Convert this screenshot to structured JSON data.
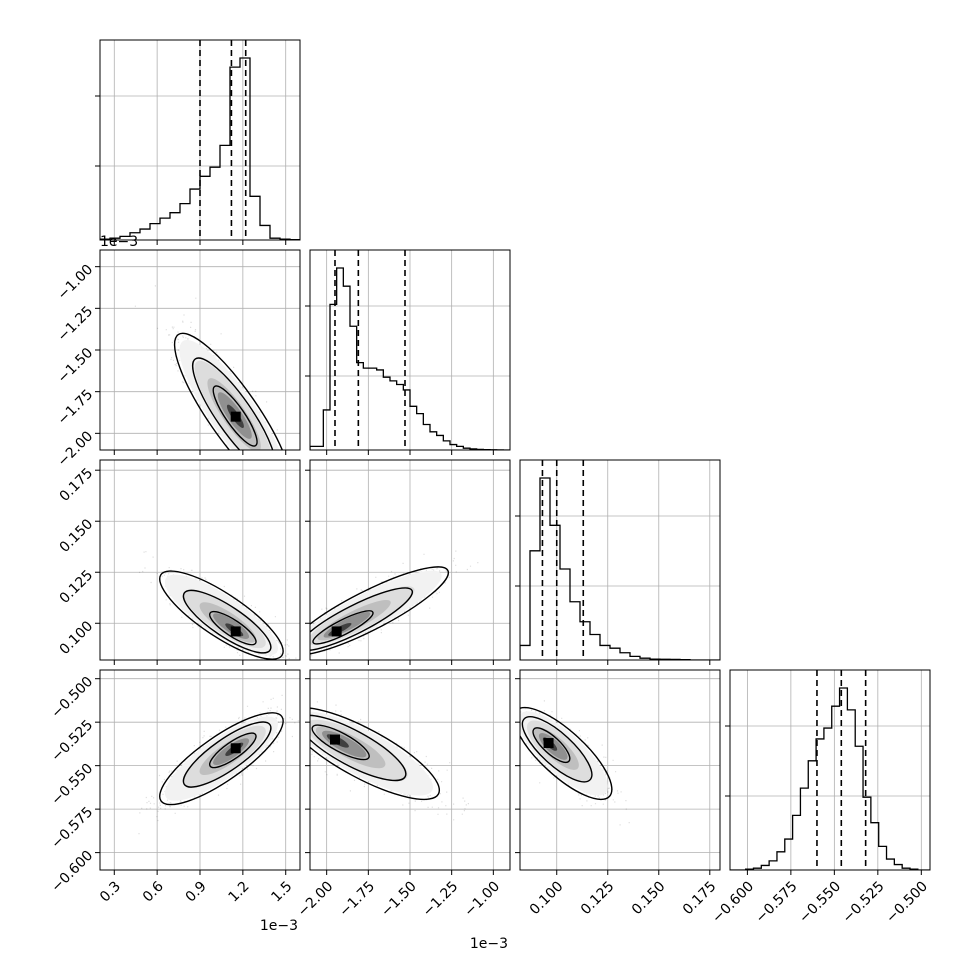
{
  "chart_data": {
    "type": "scatter",
    "figure_kind": "corner-plot",
    "title": "",
    "parameters": [
      {
        "id": "p0",
        "range": [
          0.2,
          1.6
        ],
        "offset_label": "1e−3",
        "ticks": [
          0.3,
          0.6,
          0.9,
          1.2,
          1.5
        ],
        "tick_labels": [
          "0.3",
          "0.6",
          "0.9",
          "1.2",
          "1.5"
        ],
        "quantiles": [
          0.9,
          1.12,
          1.22
        ]
      },
      {
        "id": "p1",
        "range": [
          -2.1,
          -0.9
        ],
        "offset_label": "1e−3",
        "ticks": [
          -2.0,
          -1.75,
          -1.5,
          -1.25,
          -1.0
        ],
        "tick_labels": [
          "−2.00",
          "−1.75",
          "−1.50",
          "−1.25",
          "−1.00"
        ],
        "quantiles": [
          -1.95,
          -1.81,
          -1.53
        ]
      },
      {
        "id": "p2",
        "range": [
          0.082,
          0.18
        ],
        "offset_label": "",
        "ticks": [
          0.1,
          0.125,
          0.15,
          0.175
        ],
        "tick_labels": [
          "0.100",
          "0.125",
          "0.150",
          "0.175"
        ],
        "quantiles": [
          0.093,
          0.1,
          0.113
        ]
      },
      {
        "id": "p3",
        "range": [
          -0.61,
          -0.495
        ],
        "offset_label": "",
        "ticks": [
          -0.6,
          -0.575,
          -0.55,
          -0.525,
          -0.5
        ],
        "tick_labels": [
          "−0.600",
          "−0.575",
          "−0.550",
          "−0.525",
          "−0.500"
        ],
        "quantiles": [
          -0.56,
          -0.546,
          -0.532
        ]
      }
    ],
    "histograms": [
      {
        "param": "p0",
        "bin_edges": [
          0.2,
          0.27,
          0.34,
          0.41,
          0.48,
          0.55,
          0.62,
          0.69,
          0.76,
          0.83,
          0.9,
          0.97,
          1.04,
          1.11,
          1.18,
          1.25,
          1.32,
          1.39,
          1.46,
          1.53,
          1.6
        ],
        "counts": [
          0.005,
          0.01,
          0.02,
          0.04,
          0.06,
          0.09,
          0.12,
          0.15,
          0.2,
          0.28,
          0.35,
          0.4,
          0.52,
          0.95,
          1.0,
          0.24,
          0.08,
          0.01,
          0.005,
          0.002
        ]
      },
      {
        "param": "p1",
        "bin_edges": [
          -2.1,
          -2.06,
          -2.02,
          -1.98,
          -1.94,
          -1.9,
          -1.86,
          -1.82,
          -1.78,
          -1.74,
          -1.7,
          -1.66,
          -1.62,
          -1.58,
          -1.54,
          -1.5,
          -1.46,
          -1.42,
          -1.38,
          -1.34,
          -1.3,
          -1.26,
          -1.22,
          -1.18,
          -1.14,
          -1.1,
          -1.06,
          -1.02,
          -0.98,
          -0.94,
          -0.9
        ],
        "counts": [
          0.02,
          0.02,
          0.22,
          0.8,
          1.0,
          0.9,
          0.68,
          0.48,
          0.45,
          0.45,
          0.44,
          0.4,
          0.38,
          0.36,
          0.33,
          0.24,
          0.2,
          0.14,
          0.1,
          0.08,
          0.05,
          0.03,
          0.02,
          0.01,
          0.006,
          0.003,
          0.002,
          0.001,
          0.0005,
          0.0
        ]
      },
      {
        "param": "p2",
        "bin_edges": [
          0.082,
          0.0869,
          0.0918,
          0.0967,
          0.1016,
          0.1065,
          0.1114,
          0.1163,
          0.1212,
          0.1261,
          0.131,
          0.1359,
          0.1408,
          0.1457,
          0.1506,
          0.1555,
          0.1604,
          0.1653,
          0.1702,
          0.1751,
          0.18
        ],
        "counts": [
          0.08,
          0.6,
          1.0,
          0.74,
          0.5,
          0.32,
          0.21,
          0.14,
          0.08,
          0.065,
          0.04,
          0.02,
          0.01,
          0.005,
          0.004,
          0.003,
          0.002,
          0.0,
          0.0,
          0.0
        ]
      },
      {
        "param": "p3",
        "bin_edges": [
          -0.61,
          -0.6055,
          -0.601,
          -0.5965,
          -0.592,
          -0.5875,
          -0.583,
          -0.5785,
          -0.574,
          -0.5695,
          -0.565,
          -0.5605,
          -0.556,
          -0.5515,
          -0.547,
          -0.5425,
          -0.538,
          -0.5335,
          -0.529,
          -0.5245,
          -0.52,
          -0.5155,
          -0.511,
          -0.5065,
          -0.502,
          -0.495
        ],
        "counts": [
          0.0,
          0.0,
          0.005,
          0.01,
          0.025,
          0.05,
          0.1,
          0.17,
          0.3,
          0.45,
          0.6,
          0.72,
          0.78,
          0.9,
          1.0,
          0.88,
          0.68,
          0.4,
          0.26,
          0.13,
          0.06,
          0.03,
          0.01,
          0.005,
          0.0
        ]
      }
    ],
    "pairs": [
      {
        "x": "p0",
        "y": "p1",
        "center": [
          1.13,
          -1.88
        ],
        "spread": [
          0.17,
          0.2
        ],
        "correlation": -0.86,
        "mode": [
          1.15,
          -1.9
        ]
      },
      {
        "x": "p0",
        "y": "p2",
        "center": [
          1.05,
          0.104
        ],
        "spread": [
          0.18,
          0.009
        ],
        "correlation": -0.82,
        "mode": [
          1.15,
          0.096
        ]
      },
      {
        "x": "p1",
        "y": "p2",
        "center": [
          -1.75,
          0.106
        ],
        "spread": [
          0.2,
          0.009
        ],
        "correlation": 0.87,
        "mode": [
          -1.94,
          0.096
        ]
      },
      {
        "x": "p0",
        "y": "p3",
        "center": [
          1.05,
          -0.546
        ],
        "spread": [
          0.18,
          0.011
        ],
        "correlation": 0.82,
        "mode": [
          1.15,
          -0.54
        ]
      },
      {
        "x": "p1",
        "y": "p3",
        "center": [
          -1.78,
          -0.543
        ],
        "spread": [
          0.19,
          0.011
        ],
        "correlation": -0.8,
        "mode": [
          -1.95,
          -0.535
        ]
      },
      {
        "x": "p2",
        "y": "p3",
        "center": [
          0.103,
          -0.543
        ],
        "spread": [
          0.01,
          0.011
        ],
        "correlation": -0.78,
        "mode": [
          0.096,
          -0.537
        ]
      }
    ],
    "grid": true,
    "colors": {
      "line": "#000000",
      "grid": "#b0b0b0",
      "points": "#000000"
    }
  }
}
